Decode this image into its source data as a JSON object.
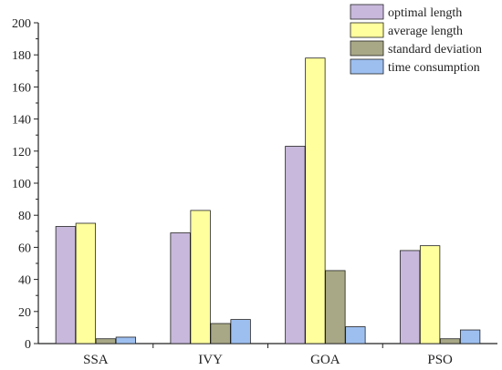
{
  "chart_data": {
    "type": "bar",
    "categories": [
      "SSA",
      "IVY",
      "GOA",
      "PSO"
    ],
    "series": [
      {
        "name": "optimal length",
        "values": [
          73,
          69,
          123,
          58
        ],
        "color": "#c8b8dc"
      },
      {
        "name": "average length",
        "values": [
          75,
          83,
          178,
          61
        ],
        "color": "#ffff9e"
      },
      {
        "name": "standard deviation",
        "values": [
          3,
          12.5,
          45.5,
          3
        ],
        "color": "#a8a886"
      },
      {
        "name": "time consumption",
        "values": [
          4,
          15,
          10.5,
          8.5
        ],
        "color": "#9dbff0"
      }
    ],
    "y_ticks": [
      "0",
      "20",
      "40",
      "60",
      "80",
      "100",
      "120",
      "140",
      "160",
      "180",
      "200"
    ],
    "ylim": [
      0,
      200
    ],
    "title": "",
    "xlabel": "",
    "ylabel": "",
    "grid": false,
    "legend_position": "top-right"
  }
}
